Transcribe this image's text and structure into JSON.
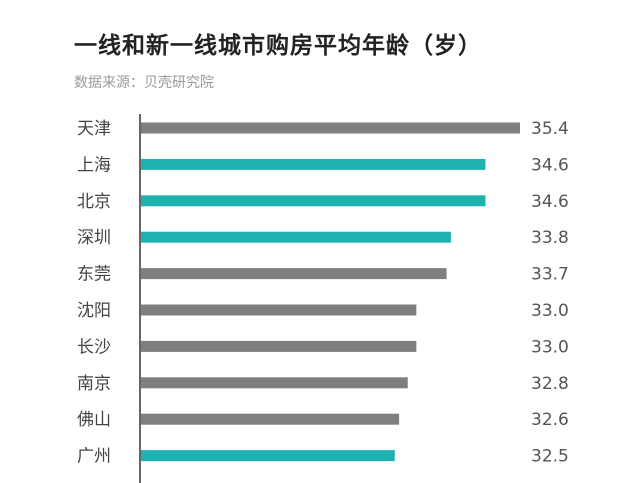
{
  "title": "一线和新一线城市购房平均年龄（岁）",
  "source": "数据来源：贝壳研究院",
  "colors": {
    "first_tier": "#1fb2b0",
    "new_first_tier": "#7f7f7f",
    "axis": "#333333",
    "label": "#444444",
    "value": "#555555"
  },
  "chart_data": {
    "type": "bar",
    "orientation": "horizontal",
    "title": "一线和新一线城市购房平均年龄（岁）",
    "source": "数据来源：贝壳研究院",
    "categories": [
      "天津",
      "上海",
      "北京",
      "深圳",
      "东莞",
      "沈阳",
      "长沙",
      "南京",
      "佛山",
      "广州"
    ],
    "values": [
      35.4,
      34.6,
      34.6,
      33.8,
      33.7,
      33.0,
      33.0,
      32.8,
      32.6,
      32.5
    ],
    "value_labels": [
      "35.4",
      "34.6",
      "34.6",
      "33.8",
      "33.7",
      "33.0",
      "33.0",
      "32.8",
      "32.6",
      "32.5"
    ],
    "bar_colors": [
      "#7f7f7f",
      "#1fb2b0",
      "#1fb2b0",
      "#1fb2b0",
      "#7f7f7f",
      "#7f7f7f",
      "#7f7f7f",
      "#7f7f7f",
      "#7f7f7f",
      "#1fb2b0"
    ],
    "xlim": [
      26.6,
      35.4
    ],
    "grid": false,
    "legend": "none"
  }
}
